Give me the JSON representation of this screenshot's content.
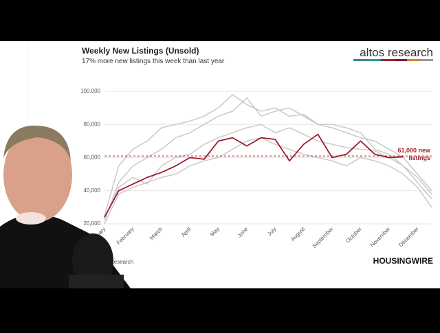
{
  "chart_data": {
    "type": "line",
    "title": "Weekly New Listings (Unsold)",
    "subtitle": "17% more new listings this week than last year",
    "categories": [
      "January",
      null,
      "February",
      null,
      "March",
      null,
      "April",
      null,
      "May",
      null,
      "June",
      null,
      "July",
      null,
      "August",
      null,
      "September",
      null,
      "October",
      null,
      "November",
      null,
      "December",
      null
    ],
    "series": [
      {
        "color": "#c8c8c8",
        "values": [
          25000,
          55000,
          65000,
          70000,
          78000,
          80000,
          82000,
          85000,
          90000,
          98000,
          92000,
          88000,
          90000,
          85000,
          86000,
          80000,
          78000,
          75000,
          72000,
          70000,
          65000,
          60000,
          50000,
          40000
        ]
      },
      {
        "color": "#c8c8c8",
        "values": [
          22000,
          45000,
          55000,
          60000,
          65000,
          72000,
          75000,
          80000,
          85000,
          88000,
          96000,
          85000,
          88000,
          90000,
          85000,
          80000,
          80000,
          78000,
          75000,
          65000,
          62000,
          55000,
          45000,
          35000
        ]
      },
      {
        "color": "#c8c8c8",
        "values": [
          20000,
          38000,
          42000,
          45000,
          48000,
          50000,
          55000,
          58000,
          60000,
          65000,
          70000,
          72000,
          68000,
          65000,
          62000,
          60000,
          58000,
          55000,
          60000,
          58000,
          55000,
          50000,
          42000,
          30000
        ]
      },
      {
        "color": "#c8c8c8",
        "values": [
          23000,
          42000,
          48000,
          44000,
          55000,
          60000,
          62000,
          68000,
          72000,
          75000,
          78000,
          80000,
          75000,
          78000,
          74000,
          70000,
          68000,
          66000,
          65000,
          64000,
          60000,
          55000,
          48000,
          38000
        ]
      },
      {
        "color": "#9e1b2a",
        "values": [
          24000,
          40000,
          44000,
          48000,
          51000,
          55000,
          60000,
          59000,
          70000,
          72000,
          67000,
          72000,
          71000,
          58000,
          68000,
          74000,
          60000,
          62000,
          70000,
          62000,
          60000,
          60500,
          null,
          null
        ]
      }
    ],
    "ylim": [
      20000,
      100000
    ],
    "yticks": [
      {
        "value": 20000,
        "label": "20,000"
      },
      {
        "value": 40000,
        "label": "40,000"
      },
      {
        "value": 60000,
        "label": "60,000"
      },
      {
        "value": 80000,
        "label": "80,000"
      },
      {
        "value": 100000,
        "label": "100,000"
      }
    ],
    "grid": true,
    "reference_line": {
      "value": 61000,
      "label": "61,000 new listings",
      "color": "#a3242e"
    }
  },
  "logo": "altos research",
  "source": "Altos Research",
  "brand": "HOUSINGWIRE"
}
